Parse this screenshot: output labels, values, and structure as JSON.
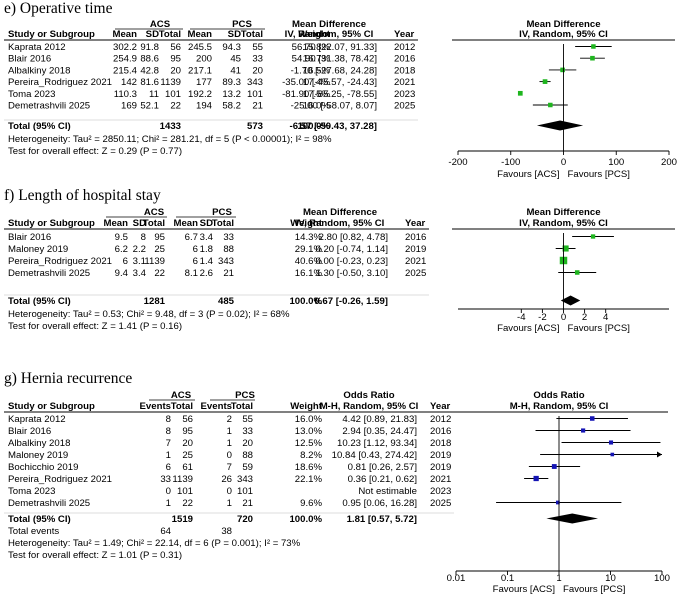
{
  "chart_data": [
    {
      "type": "forest",
      "panel_title": "e) Operative time",
      "outcome": "continuous",
      "col_study": "Study or Subgroup",
      "group1": "ACS",
      "group2": "PCS",
      "group_cols": [
        "Mean",
        "SD",
        "Total"
      ],
      "col_weight": "Weight",
      "col_effect_title": "Mean Difference",
      "col_effect_method": "IV, Random, 95% CI",
      "col_year": "Year",
      "plot_title": "Mean Difference",
      "plot_method": "IV, Random, 95% CI",
      "axis_scale": "linear",
      "axis_ticks": [
        -200,
        -100,
        0,
        100,
        200
      ],
      "axis_tick_labels": [
        "-200",
        "-100",
        "0",
        "100",
        "200"
      ],
      "favours_left": "Favours [ACS]",
      "favours_right": "Favours [PCS]",
      "studies": [
        {
          "name": "Kaprata 2012",
          "g1": [
            "302.2",
            "91.8",
            "56"
          ],
          "g2": [
            "245.5",
            "94.3",
            "55"
          ],
          "weight": "15.8%",
          "effect_text": "56.70 [22.07, 91.33]",
          "year": "2012",
          "est": 56.7,
          "lo": 22.07,
          "hi": 91.33
        },
        {
          "name": "Blair 2016",
          "g1": [
            "254.9",
            "88.6",
            "95"
          ],
          "g2": [
            "200",
            "45",
            "33"
          ],
          "weight": "16.7%",
          "effect_text": "54.90 [31.38, 78.42]",
          "year": "2016",
          "est": 54.9,
          "lo": 31.38,
          "hi": 78.42
        },
        {
          "name": "Albalkiny 2018",
          "g1": [
            "215.4",
            "42.8",
            "20"
          ],
          "g2": [
            "217.1",
            "41",
            "20"
          ],
          "weight": "16.5%",
          "effect_text": "-1.70 [-27.68, 24.28]",
          "year": "2018",
          "est": -1.7,
          "lo": -27.68,
          "hi": 24.28
        },
        {
          "name": "Pereira_Rodriguez 2021",
          "g1": [
            "142",
            "81.6",
            "1139"
          ],
          "g2": [
            "177",
            "89.3",
            "343"
          ],
          "weight": "17.4%",
          "effect_text": "-35.00 [-45.57, -24.43]",
          "year": "2021",
          "est": -35.0,
          "lo": -45.57,
          "hi": -24.43
        },
        {
          "name": "Toma 2023",
          "g1": [
            "110.3",
            "11",
            "101"
          ],
          "g2": [
            "192.2",
            "13.2",
            "101"
          ],
          "weight": "17.5%",
          "effect_text": "-81.90 [-85.25, -78.55]",
          "year": "2023",
          "est": -81.9,
          "lo": -85.25,
          "hi": -78.55
        },
        {
          "name": "Demetrashvili 2025",
          "g1": [
            "169",
            "52.1",
            "22"
          ],
          "g2": [
            "194",
            "58.2",
            "21"
          ],
          "weight": "16.0%",
          "effect_text": "-25.00 [-58.07, 8.07]",
          "year": "2025",
          "est": -25.0,
          "lo": -58.07,
          "hi": 8.07
        }
      ],
      "total": {
        "label": "Total (95% CI)",
        "n1": "1433",
        "n2": "573",
        "weight": "100.0%",
        "effect_text": "-6.57 [-50.43, 37.28]",
        "est": -6.57,
        "lo": -50.43,
        "hi": 37.28
      },
      "events_row": null,
      "heterogeneity": "Heterogeneity: Tau² = 2850.11; Chi² = 281.21, df = 5 (P < 0.00001); I² = 98%",
      "overall_effect": "Test for overall effect: Z = 0.29 (P = 0.77)"
    },
    {
      "type": "forest",
      "panel_title": "f)  Length of hospital stay",
      "outcome": "continuous",
      "col_study": "Study or Subgroup",
      "group1": "ACS",
      "group2": "PCS",
      "group_cols": [
        "Mean",
        "SD",
        "Total"
      ],
      "col_weight": "Weight",
      "col_effect_title": "Mean Difference",
      "col_effect_method": "IV, Random, 95% CI",
      "col_year": "Year",
      "plot_title": "Mean Difference",
      "plot_method": "IV, Random, 95% CI",
      "axis_scale": "linear",
      "axis_ticks": [
        -4,
        -2,
        0,
        2,
        4
      ],
      "axis_tick_labels": [
        "-4",
        "-2",
        "0",
        "2",
        "4"
      ],
      "favours_left": "Favours [ACS]",
      "favours_right": "Favours [PCS]",
      "studies": [
        {
          "name": "Blair 2016",
          "g1": [
            "9.5",
            "8",
            "95"
          ],
          "g2": [
            "6.7",
            "3.4",
            "33"
          ],
          "weight": "14.3%",
          "effect_text": "2.80 [0.82, 4.78]",
          "year": "2016",
          "est": 2.8,
          "lo": 0.82,
          "hi": 4.78
        },
        {
          "name": "Maloney 2019",
          "g1": [
            "6.2",
            "2.2",
            "25"
          ],
          "g2": [
            "6",
            "1.8",
            "88"
          ],
          "weight": "29.1%",
          "effect_text": "0.20 [-0.74, 1.14]",
          "year": "2019",
          "est": 0.2,
          "lo": -0.74,
          "hi": 1.14
        },
        {
          "name": "Pereira_Rodriguez 2021",
          "g1": [
            "6",
            "3.1",
            "1139"
          ],
          "g2": [
            "6",
            "1.4",
            "343"
          ],
          "weight": "40.6%",
          "effect_text": "0.00 [-0.23, 0.23]",
          "year": "2021",
          "est": 0.0,
          "lo": -0.23,
          "hi": 0.23
        },
        {
          "name": "Demetrashvili 2025",
          "g1": [
            "9.4",
            "3.4",
            "22"
          ],
          "g2": [
            "8.1",
            "2.6",
            "21"
          ],
          "weight": "16.1%",
          "effect_text": "1.30 [-0.50, 3.10]",
          "year": "2025",
          "est": 1.3,
          "lo": -0.5,
          "hi": 3.1
        }
      ],
      "total": {
        "label": "Total (95% CI)",
        "n1": "1281",
        "n2": "485",
        "weight": "100.0%",
        "effect_text": "0.67 [-0.26, 1.59]",
        "est": 0.67,
        "lo": -0.26,
        "hi": 1.59
      },
      "events_row": null,
      "heterogeneity": "Heterogeneity: Tau² = 0.53; Chi² = 9.48, df = 3 (P = 0.02); I² = 68%",
      "overall_effect": "Test for overall effect: Z = 1.41 (P = 0.16)"
    },
    {
      "type": "forest",
      "panel_title": "g) Hernia recurrence",
      "outcome": "binary",
      "col_study": "Study or Subgroup",
      "group1": "ACS",
      "group2": "PCS",
      "group_cols": [
        "Events",
        "Total"
      ],
      "col_weight": "Weight",
      "col_effect_title": "Odds Ratio",
      "col_effect_method": "M-H, Random, 95% CI",
      "col_year": "Year",
      "plot_title": "Odds Ratio",
      "plot_method": "M-H, Random, 95% CI",
      "axis_scale": "log",
      "axis_ticks": [
        0.01,
        0.1,
        1,
        10,
        100
      ],
      "axis_tick_labels": [
        "0.01",
        "0.1",
        "1",
        "10",
        "100"
      ],
      "favours_left": "Favours [ACS]",
      "favours_right": "Favours [PCS]",
      "studies": [
        {
          "name": "Kaprata 2012",
          "g1": [
            "8",
            "56"
          ],
          "g2": [
            "2",
            "55"
          ],
          "weight": "16.0%",
          "effect_text": "4.42 [0.89, 21.83]",
          "year": "2012",
          "est": 4.42,
          "lo": 0.89,
          "hi": 21.83
        },
        {
          "name": "Blair 2016",
          "g1": [
            "8",
            "95"
          ],
          "g2": [
            "1",
            "33"
          ],
          "weight": "13.0%",
          "effect_text": "2.94 [0.35, 24.47]",
          "year": "2016",
          "est": 2.94,
          "lo": 0.35,
          "hi": 24.47
        },
        {
          "name": "Albalkiny 2018",
          "g1": [
            "7",
            "20"
          ],
          "g2": [
            "1",
            "20"
          ],
          "weight": "12.5%",
          "effect_text": "10.23 [1.12, 93.34]",
          "year": "2018",
          "est": 10.23,
          "lo": 1.12,
          "hi": 93.34
        },
        {
          "name": "Maloney 2019",
          "g1": [
            "1",
            "25"
          ],
          "g2": [
            "0",
            "88"
          ],
          "weight": "8.2%",
          "effect_text": "10.84 [0.43, 274.42]",
          "year": "2019",
          "est": 10.84,
          "lo": 0.43,
          "hi": 274.42
        },
        {
          "name": "Bochicchio 2019",
          "g1": [
            "6",
            "61"
          ],
          "g2": [
            "7",
            "59"
          ],
          "weight": "18.6%",
          "effect_text": "0.81 [0.26, 2.57]",
          "year": "2019",
          "est": 0.81,
          "lo": 0.26,
          "hi": 2.57
        },
        {
          "name": "Pereira_Rodriguez 2021",
          "g1": [
            "33",
            "1139"
          ],
          "g2": [
            "26",
            "343"
          ],
          "weight": "22.1%",
          "effect_text": "0.36 [0.21, 0.62]",
          "year": "2021",
          "est": 0.36,
          "lo": 0.21,
          "hi": 0.62
        },
        {
          "name": "Toma 2023",
          "g1": [
            "0",
            "101"
          ],
          "g2": [
            "0",
            "101"
          ],
          "weight": "",
          "effect_text": "Not estimable",
          "year": "2023",
          "est": null,
          "lo": null,
          "hi": null
        },
        {
          "name": "Demetrashvili 2025",
          "g1": [
            "1",
            "22"
          ],
          "g2": [
            "1",
            "21"
          ],
          "weight": "9.6%",
          "effect_text": "0.95 [0.06, 16.28]",
          "year": "2025",
          "est": 0.95,
          "lo": 0.06,
          "hi": 16.28
        }
      ],
      "total": {
        "label": "Total (95% CI)",
        "n1": "1519",
        "n2": "720",
        "weight": "100.0%",
        "effect_text": "1.81 [0.57, 5.72]",
        "est": 1.81,
        "lo": 0.57,
        "hi": 5.72
      },
      "events_row": {
        "label": "Total events",
        "e1": "64",
        "e2": "38"
      },
      "heterogeneity": "Heterogeneity: Tau² = 1.49; Chi² = 22.14, df = 6 (P = 0.001); I² = 73%",
      "overall_effect": "Test for overall effect: Z = 1.01 (P = 0.31)"
    }
  ],
  "colors": {
    "study_marker": "#1fb51f",
    "study_marker_or": "#1414b4",
    "diamond": "#000000"
  }
}
